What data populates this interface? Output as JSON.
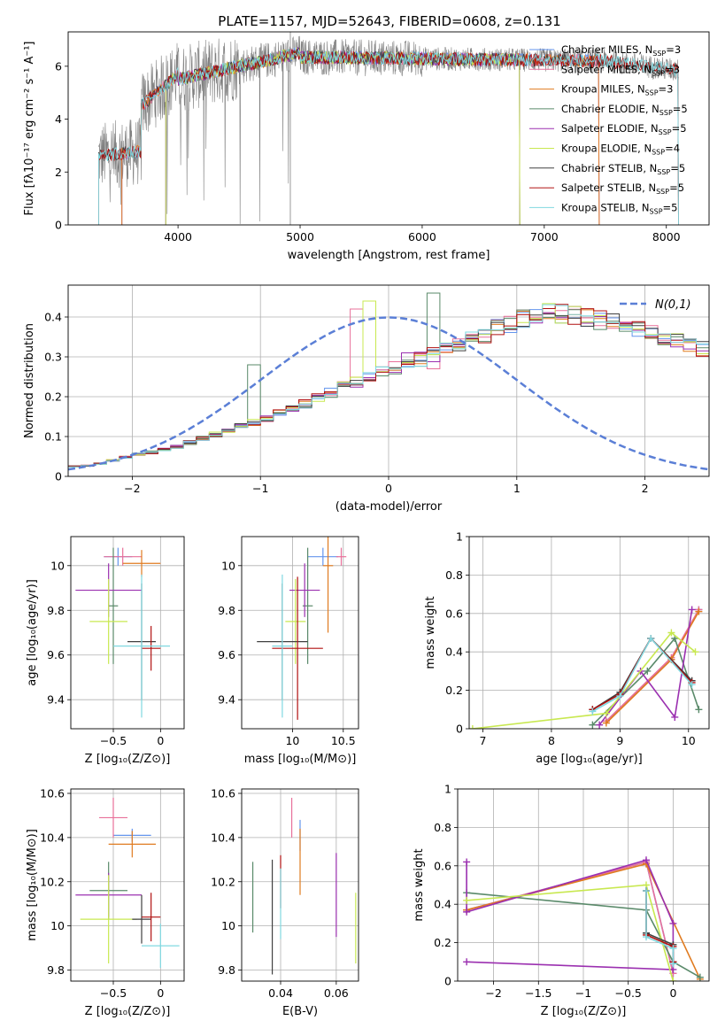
{
  "figure_title": "PLATE=1157, MJD=52643, FIBERID=0608, z=0.131",
  "model_colors": [
    "#6495ed",
    "#e8709a",
    "#e07b20",
    "#5a8a6a",
    "#9b30b0",
    "#c8e850",
    "#404040",
    "#b01010",
    "#80d8e0"
  ],
  "chart_data": [
    {
      "id": "spectrum",
      "type": "line",
      "title": "PLATE=1157, MJD=52643, FIBERID=0608, z=0.131",
      "xlabel": "wavelength [Angstrom, rest frame]",
      "ylabel": "Flux [fλ10⁻¹⁷ erg cm⁻² s⁻¹ A⁻¹]",
      "xlim": [
        3100,
        8350
      ],
      "ylim": [
        0,
        7.3
      ],
      "xticks": [
        4000,
        5000,
        6000,
        7000,
        8000
      ],
      "yticks": [
        0,
        2,
        4,
        6
      ],
      "legend_position": "upper-right",
      "legend": [
        "Chabrier MILES, N_SSP=3",
        "Salpeter MILES, N_SSP=3",
        "Kroupa MILES, N_SSP=3",
        "Chabrier ELODIE, N_SSP=5",
        "Salpeter ELODIE, N_SSP=5",
        "Kroupa ELODIE, N_SSP=4",
        "Chabrier STELIB, N_SSP=5",
        "Salpeter STELIB, N_SSP=5",
        "Kroupa STELIB, N_SSP=5"
      ],
      "model_ranges": [
        [
          3540,
          7450
        ],
        [
          3540,
          7450
        ],
        [
          3540,
          7450
        ],
        [
          3900,
          6800
        ],
        [
          3900,
          6800
        ],
        [
          3900,
          6800
        ],
        [
          3350,
          8100
        ],
        [
          3350,
          8100
        ],
        [
          3350,
          8100
        ]
      ],
      "data_range": [
        3350,
        8100
      ]
    },
    {
      "id": "residuals",
      "type": "histogram",
      "xlabel": "(data-model)/error",
      "ylabel": "Normed distribution",
      "xlim": [
        -2.5,
        2.5
      ],
      "ylim": [
        0,
        0.48
      ],
      "xticks": [
        -2,
        -1,
        0,
        1,
        2
      ],
      "yticks": [
        0.0,
        0.1,
        0.2,
        0.3,
        0.4
      ],
      "grid": true,
      "legend_position": "upper-right",
      "normal_curve_label": "N(0,1)",
      "bin_width": 0.1,
      "base_values": [
        0.025,
        0.027,
        0.032,
        0.04,
        0.048,
        0.055,
        0.06,
        0.067,
        0.075,
        0.085,
        0.095,
        0.105,
        0.115,
        0.125,
        0.135,
        0.145,
        0.158,
        0.17,
        0.182,
        0.196,
        0.21,
        0.225,
        0.237,
        0.25,
        0.262,
        0.272,
        0.283,
        0.294,
        0.305,
        0.318,
        0.33,
        0.342,
        0.356,
        0.372,
        0.384,
        0.396,
        0.407,
        0.41,
        0.408,
        0.403,
        0.398,
        0.392,
        0.385,
        0.378,
        0.37,
        0.36,
        0.35,
        0.34,
        0.33,
        0.32,
        0.306,
        0.292,
        0.28,
        0.266,
        0.252,
        0.238,
        0.224,
        0.21,
        0.196,
        0.182,
        0.168,
        0.155,
        0.142,
        0.13,
        0.118,
        0.107,
        0.097,
        0.088,
        0.08,
        0.072,
        0.066,
        0.06,
        0.055,
        0.05,
        0.046,
        0.042,
        0.039,
        0.036,
        0.034,
        0.032,
        0.03,
        0.028,
        0.027,
        0.026,
        0.025,
        0.024,
        0.023,
        0.023,
        0.022,
        0.022,
        0.022,
        0.022,
        0.021,
        0.021,
        0.021,
        0.021,
        0.021,
        0.021,
        0.021,
        0.021
      ],
      "highlights": [
        {
          "model": 3,
          "x": 0.35,
          "value": 0.46
        },
        {
          "model": 3,
          "x": -1.05,
          "value": 0.28
        },
        {
          "model": 1,
          "x": -0.25,
          "value": 0.42
        },
        {
          "model": 1,
          "x": 0.35,
          "value": 0.27
        },
        {
          "model": 4,
          "x": 0.15,
          "value": 0.31
        },
        {
          "model": 5,
          "x": -0.15,
          "value": 0.44
        }
      ]
    },
    {
      "id": "age_vs_Z",
      "type": "errorbar",
      "xlabel": "Z [log₁₀(Z/Z⊙)]",
      "ylabel": "age  [log₁₀(age/yr)]",
      "xlim": [
        -0.95,
        0.25
      ],
      "ylim": [
        9.27,
        10.13
      ],
      "xticks": [
        -0.5,
        0.0
      ],
      "yticks": [
        9.4,
        9.6,
        9.8,
        10.0
      ],
      "grid": true,
      "points": [
        {
          "model": 0,
          "x": -0.45,
          "xerr": 0.15,
          "y": 10.04,
          "yerr": 0.04
        },
        {
          "model": 1,
          "x": -0.4,
          "xerr": 0.2,
          "y": 10.04,
          "yerr": 0.04
        },
        {
          "model": 2,
          "x": -0.2,
          "xerr": 0.2,
          "y": 10.01,
          "yerr": 0.06
        },
        {
          "model": 3,
          "x": -0.5,
          "xerr": 0.05,
          "y": 9.82,
          "yerr": 0.26
        },
        {
          "model": 4,
          "x": -0.55,
          "xerr": 0.35,
          "y": 9.89,
          "yerr": 0.12
        },
        {
          "model": 5,
          "x": -0.55,
          "xerr": 0.2,
          "y": 9.75,
          "yerr": 0.19
        },
        {
          "model": 6,
          "x": -0.2,
          "xerr": 0.15,
          "y": 9.66,
          "yerr": 0.26
        },
        {
          "model": 7,
          "x": -0.1,
          "xerr": 0.1,
          "y": 9.63,
          "yerr": 0.1
        },
        {
          "model": 8,
          "x": -0.2,
          "xerr": 0.3,
          "y": 9.64,
          "yerr": 0.32
        }
      ]
    },
    {
      "id": "age_vs_mass",
      "type": "errorbar",
      "xlabel": "mass [log₁₀(M/M⊙)]",
      "ylabel": "",
      "xlim": [
        9.5,
        10.65
      ],
      "ylim": [
        9.27,
        10.13
      ],
      "xticks": [
        10.0,
        10.5
      ],
      "yticks": [
        9.4,
        9.6,
        9.8,
        10.0
      ],
      "grid": true,
      "points": [
        {
          "model": 0,
          "x": 10.3,
          "xerr": 0.15,
          "y": 10.04,
          "yerr": 0.04
        },
        {
          "model": 1,
          "x": 10.48,
          "xerr": 0.05,
          "y": 10.04,
          "yerr": 0.04
        },
        {
          "model": 2,
          "x": 10.35,
          "xerr": 0.05,
          "y": 10.0,
          "yerr": 0.3
        },
        {
          "model": 3,
          "x": 10.15,
          "xerr": 0.05,
          "y": 9.82,
          "yerr": 0.26
        },
        {
          "model": 4,
          "x": 10.12,
          "xerr": 0.15,
          "y": 9.89,
          "yerr": 0.12
        },
        {
          "model": 5,
          "x": 10.03,
          "xerr": 0.1,
          "y": 9.75,
          "yerr": 0.19
        },
        {
          "model": 6,
          "x": 9.9,
          "xerr": 0.25,
          "y": 9.66,
          "yerr": 0.26
        },
        {
          "model": 7,
          "x": 10.05,
          "xerr": 0.25,
          "y": 9.63,
          "yerr": 0.32
        },
        {
          "model": 8,
          "x": 9.9,
          "xerr": 0.1,
          "y": 9.64,
          "yerr": 0.32
        }
      ]
    },
    {
      "id": "weight_vs_age",
      "type": "line",
      "xlabel": "age  [log₁₀(age/yr)]",
      "ylabel": "mass weight",
      "xlim": [
        6.8,
        10.3
      ],
      "ylim": [
        0,
        1.0
      ],
      "xticks": [
        7,
        8,
        9,
        10
      ],
      "yticks": [
        0.0,
        0.2,
        0.4,
        0.6,
        0.8,
        1.0
      ],
      "grid": true,
      "series": [
        {
          "model": 0,
          "x": [
            8.8,
            9.75,
            10.15
          ],
          "y": [
            0.04,
            0.36,
            0.62
          ]
        },
        {
          "model": 1,
          "x": [
            8.8,
            9.75,
            10.15
          ],
          "y": [
            0.04,
            0.37,
            0.62
          ]
        },
        {
          "model": 2,
          "x": [
            8.8,
            9.75,
            10.15
          ],
          "y": [
            0.03,
            0.36,
            0.61
          ]
        },
        {
          "model": 3,
          "x": [
            8.6,
            9.4,
            9.8,
            10.15
          ],
          "y": [
            0.02,
            0.3,
            0.47,
            0.1
          ]
        },
        {
          "model": 4,
          "x": [
            8.7,
            9.3,
            9.8,
            10.05
          ],
          "y": [
            0.02,
            0.3,
            0.06,
            0.62
          ]
        },
        {
          "model": 5,
          "x": [
            6.85,
            8.8,
            9.75,
            10.1
          ],
          "y": [
            0.0,
            0.08,
            0.5,
            0.4
          ]
        },
        {
          "model": 6,
          "x": [
            8.6,
            9.0,
            9.45,
            10.05
          ],
          "y": [
            0.1,
            0.19,
            0.47,
            0.25
          ]
        },
        {
          "model": 7,
          "x": [
            8.6,
            9.0,
            9.45,
            10.05
          ],
          "y": [
            0.1,
            0.18,
            0.47,
            0.24
          ]
        },
        {
          "model": 8,
          "x": [
            8.6,
            9.0,
            9.45,
            10.05
          ],
          "y": [
            0.09,
            0.17,
            0.47,
            0.23
          ]
        }
      ]
    },
    {
      "id": "mass_vs_Z",
      "type": "errorbar",
      "xlabel": "Z [log₁₀(Z/Z⊙)]",
      "ylabel": "mass [log₁₀(M/M⊙)]",
      "xlim": [
        -0.95,
        0.25
      ],
      "ylim": [
        9.75,
        10.62
      ],
      "xticks": [
        -0.5,
        0.0
      ],
      "yticks": [
        9.8,
        10.0,
        10.2,
        10.4,
        10.6
      ],
      "grid": true,
      "points": [
        {
          "model": 0,
          "x": -0.3,
          "xerr": 0.2,
          "y": 10.41,
          "yerr": 0.03
        },
        {
          "model": 1,
          "x": -0.5,
          "xerr": 0.15,
          "y": 10.49,
          "yerr": 0.09
        },
        {
          "model": 2,
          "x": -0.3,
          "xerr": 0.25,
          "y": 10.37,
          "yerr": 0.06
        },
        {
          "model": 3,
          "x": -0.55,
          "xerr": 0.2,
          "y": 10.16,
          "yerr": 0.13
        },
        {
          "model": 4,
          "x": -0.55,
          "xerr": 0.35,
          "y": 10.14,
          "yerr": 0.1
        },
        {
          "model": 5,
          "x": -0.55,
          "xerr": 0.3,
          "y": 10.03,
          "yerr": 0.2
        },
        {
          "model": 6,
          "x": -0.2,
          "xerr": 0.1,
          "y": 10.03,
          "yerr": 0.11
        },
        {
          "model": 7,
          "x": -0.1,
          "xerr": 0.1,
          "y": 10.04,
          "yerr": 0.11
        },
        {
          "model": 8,
          "x": 0.0,
          "xerr": 0.2,
          "y": 9.91,
          "yerr": 0.1
        }
      ]
    },
    {
      "id": "mass_vs_EBV",
      "type": "errorbar",
      "xlabel": "E(B-V)",
      "ylabel": "",
      "xlim": [
        0.026,
        0.068
      ],
      "ylim": [
        9.75,
        10.62
      ],
      "xticks": [
        0.04,
        0.06
      ],
      "yticks": [
        9.8,
        10.0,
        10.2,
        10.4,
        10.6
      ],
      "grid": true,
      "points": [
        {
          "model": 0,
          "x": 0.047,
          "xerr": 0,
          "y": 10.41,
          "yerr": 0.07
        },
        {
          "model": 1,
          "x": 0.044,
          "xerr": 0,
          "y": 10.49,
          "yerr": 0.09
        },
        {
          "model": 2,
          "x": 0.047,
          "xerr": 0,
          "y": 10.29,
          "yerr": 0.15
        },
        {
          "model": 3,
          "x": 0.03,
          "xerr": 0,
          "y": 10.13,
          "yerr": 0.16
        },
        {
          "model": 4,
          "x": 0.06,
          "xerr": 0,
          "y": 10.14,
          "yerr": 0.19
        },
        {
          "model": 5,
          "x": 0.067,
          "xerr": 0,
          "y": 9.99,
          "yerr": 0.16
        },
        {
          "model": 6,
          "x": 0.037,
          "xerr": 0,
          "y": 10.04,
          "yerr": 0.26
        },
        {
          "model": 7,
          "x": 0.04,
          "xerr": 0,
          "y": 10.2,
          "yerr": 0.12
        },
        {
          "model": 8,
          "x": 0.04,
          "xerr": 0,
          "y": 10.1,
          "yerr": 0.16
        }
      ]
    },
    {
      "id": "weight_vs_Z",
      "type": "line",
      "xlabel": "Z [log₁₀(Z/Z⊙)]",
      "ylabel": "mass weight",
      "xlim": [
        -2.4,
        0.4
      ],
      "ylim": [
        0,
        1.0
      ],
      "xticks": [
        -2.0,
        -1.5,
        -1.0,
        -0.5,
        0.0
      ],
      "yticks": [
        0.0,
        0.2,
        0.4,
        0.6,
        0.8,
        1.0
      ],
      "grid": true,
      "series": [
        {
          "model": 0,
          "x": [
            -2.3,
            -0.3,
            0.0
          ],
          "y": [
            0.37,
            0.62,
            0.04
          ]
        },
        {
          "model": 1,
          "x": [
            -2.3,
            -0.3,
            0.0
          ],
          "y": [
            0.37,
            0.62,
            0.04
          ]
        },
        {
          "model": 2,
          "x": [
            -2.3,
            -0.3,
            0.3
          ],
          "y": [
            0.37,
            0.61,
            0.01
          ]
        },
        {
          "model": 3,
          "x": [
            -2.3,
            -0.3,
            0.0,
            0.3
          ],
          "y": [
            0.46,
            0.37,
            0.1,
            0.02
          ]
        },
        {
          "model": 4,
          "x": [
            -2.3,
            -2.3,
            -0.3,
            0.0,
            0.0,
            -2.3
          ],
          "y": [
            0.62,
            0.36,
            0.63,
            0.3,
            0.06,
            0.1
          ]
        },
        {
          "model": 5,
          "x": [
            -2.3,
            -0.3,
            0.0
          ],
          "y": [
            0.42,
            0.5,
            0.0
          ]
        },
        {
          "model": 6,
          "x": [
            -0.3,
            -0.3,
            0.0,
            0.0
          ],
          "y": [
            0.47,
            0.25,
            0.19,
            0.1
          ]
        },
        {
          "model": 7,
          "x": [
            -0.3,
            -0.3,
            0.0,
            0.0
          ],
          "y": [
            0.47,
            0.24,
            0.18,
            0.1
          ]
        },
        {
          "model": 8,
          "x": [
            -0.3,
            -0.3,
            0.0,
            0.0
          ],
          "y": [
            0.47,
            0.23,
            0.17,
            0.09
          ]
        }
      ]
    }
  ]
}
